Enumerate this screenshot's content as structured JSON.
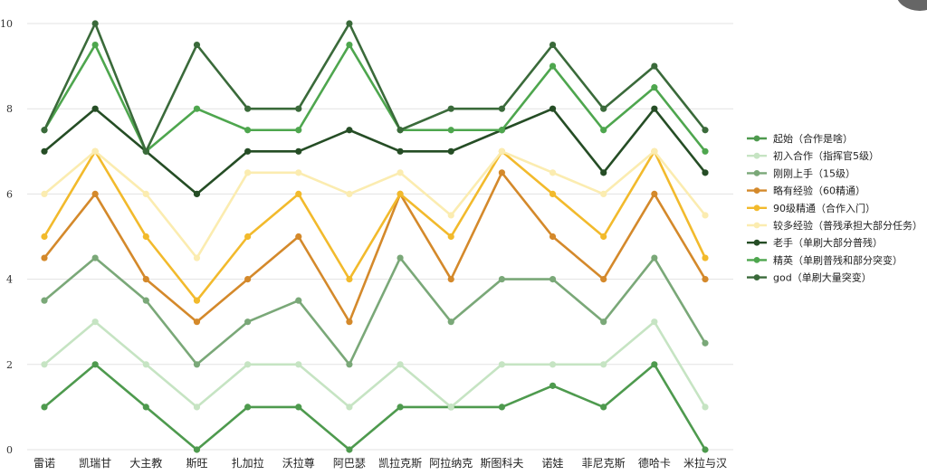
{
  "chart_data": {
    "type": "line",
    "categories": [
      "雷诺",
      "凯瑞甘",
      "大主教",
      "斯旺",
      "扎加拉",
      "沃拉尊",
      "阿巴瑟",
      "凯拉克斯",
      "阿拉纳克",
      "斯图科夫",
      "诺娃",
      "菲尼克斯",
      "德哈卡",
      "米拉与汉"
    ],
    "ylim": [
      0,
      10
    ],
    "yticks": [
      0,
      2,
      4,
      6,
      8,
      10
    ],
    "grid": true,
    "legend_position": "right",
    "series": [
      {
        "name": "起始（合作是啥）",
        "color": "#4e9a4e",
        "values": [
          1,
          2,
          1,
          0,
          1,
          1,
          0,
          1,
          1,
          1,
          1.5,
          1,
          2,
          0
        ]
      },
      {
        "name": "初入合作（指挥官5级）",
        "color": "#c6e4c3",
        "values": [
          2,
          3,
          2,
          1,
          2,
          2,
          1,
          2,
          1,
          2,
          2,
          2,
          3,
          1
        ]
      },
      {
        "name": "刚刚上手（15级）",
        "color": "#7aa878",
        "values": [
          3.5,
          4.5,
          3.5,
          2,
          3,
          3.5,
          2,
          4.5,
          3,
          4,
          4,
          3,
          4.5,
          2.5
        ]
      },
      {
        "name": "略有经验（60精通）",
        "color": "#d4892b",
        "values": [
          4.5,
          6,
          4,
          3,
          4,
          5,
          3,
          6,
          4,
          6.5,
          5,
          4,
          6,
          4
        ]
      },
      {
        "name": "90级精通（合作入门）",
        "color": "#f2ba2c",
        "values": [
          5,
          7,
          5,
          3.5,
          5,
          6,
          4,
          6,
          5,
          7,
          6,
          5,
          7,
          4.5
        ]
      },
      {
        "name": "较多经验（普残承担大部分任务）",
        "color": "#fbecb0",
        "values": [
          6,
          7,
          6,
          4.5,
          6.5,
          6.5,
          6,
          6.5,
          5.5,
          7,
          6.5,
          6,
          7,
          5.5
        ]
      },
      {
        "name": "老手（单刷大部分普残）",
        "color": "#254d25",
        "values": [
          7,
          8,
          7,
          6,
          7,
          7,
          7.5,
          7,
          7,
          7.5,
          8,
          6.5,
          8,
          6.5
        ]
      },
      {
        "name": "精英（单刷普残和部分突变）",
        "color": "#4ea64e",
        "values": [
          7.5,
          9.5,
          7,
          8,
          7.5,
          7.5,
          9.5,
          7.5,
          7.5,
          7.5,
          9,
          7.5,
          8.5,
          7
        ]
      },
      {
        "name": "god（单刷大量突变）",
        "color": "#3a6a3a",
        "values": [
          7.5,
          10,
          7,
          9.5,
          8,
          8,
          10,
          7.5,
          8,
          8,
          9.5,
          8,
          9,
          7.5
        ]
      }
    ]
  }
}
